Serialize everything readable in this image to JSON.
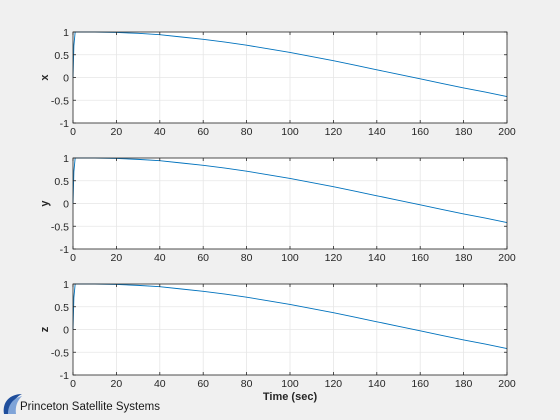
{
  "figure": {
    "background": "#f0f0f0",
    "axes_background": "#ffffff",
    "line_color": "#0072bd",
    "grid": true
  },
  "chart_data": [
    {
      "type": "line",
      "title": "",
      "xlabel": "",
      "ylabel": "x",
      "xlim": [
        0,
        200
      ],
      "ylim": [
        -1,
        1
      ],
      "xticks": [
        0,
        20,
        40,
        60,
        80,
        100,
        120,
        140,
        160,
        180,
        200
      ],
      "yticks": [
        -1,
        -0.5,
        0,
        0.5,
        1
      ],
      "ytick_labels": [
        "-1",
        "-0.5",
        "0",
        "0.5",
        "1"
      ],
      "grid": true,
      "series": [
        {
          "x": [
            0,
            0.4,
            1,
            2,
            5,
            10,
            20,
            30,
            40,
            50,
            60,
            70,
            80,
            90,
            100,
            110,
            120,
            130,
            140,
            150,
            160,
            170,
            180,
            190,
            200
          ],
          "values": [
            0.0,
            0.7,
            1.0,
            1.0,
            1.0,
            1.0,
            0.99,
            0.97,
            0.94,
            0.89,
            0.84,
            0.78,
            0.71,
            0.63,
            0.55,
            0.46,
            0.37,
            0.27,
            0.17,
            0.07,
            -0.03,
            -0.13,
            -0.23,
            -0.32,
            -0.42
          ]
        }
      ]
    },
    {
      "type": "line",
      "title": "",
      "xlabel": "",
      "ylabel": "y",
      "xlim": [
        0,
        200
      ],
      "ylim": [
        -1,
        1
      ],
      "xticks": [
        0,
        20,
        40,
        60,
        80,
        100,
        120,
        140,
        160,
        180,
        200
      ],
      "yticks": [
        -1,
        -0.5,
        0,
        0.5,
        1
      ],
      "ytick_labels": [
        "-1",
        "-0.5",
        "0",
        "0.5",
        "1"
      ],
      "grid": true,
      "series": [
        {
          "x": [
            0,
            0.4,
            1,
            2,
            5,
            10,
            20,
            30,
            40,
            50,
            60,
            70,
            80,
            90,
            100,
            110,
            120,
            130,
            140,
            150,
            160,
            170,
            180,
            190,
            200
          ],
          "values": [
            0.0,
            0.7,
            1.0,
            1.0,
            1.0,
            1.0,
            0.99,
            0.97,
            0.94,
            0.89,
            0.84,
            0.78,
            0.71,
            0.63,
            0.55,
            0.46,
            0.37,
            0.27,
            0.17,
            0.07,
            -0.03,
            -0.13,
            -0.23,
            -0.32,
            -0.42
          ]
        }
      ]
    },
    {
      "type": "line",
      "title": "",
      "xlabel": "Time (sec)",
      "ylabel": "z",
      "xlim": [
        0,
        200
      ],
      "ylim": [
        -1,
        1
      ],
      "xticks": [
        0,
        20,
        40,
        60,
        80,
        100,
        120,
        140,
        160,
        180,
        200
      ],
      "yticks": [
        -1,
        -0.5,
        0,
        0.5,
        1
      ],
      "ytick_labels": [
        "-1",
        "-0.5",
        "0",
        "0.5",
        "1"
      ],
      "grid": true,
      "series": [
        {
          "x": [
            0,
            0.4,
            1,
            2,
            5,
            10,
            20,
            30,
            40,
            50,
            60,
            70,
            80,
            90,
            100,
            110,
            120,
            130,
            140,
            150,
            160,
            170,
            180,
            190,
            200
          ],
          "values": [
            0.0,
            0.7,
            1.0,
            1.0,
            1.0,
            1.0,
            0.99,
            0.97,
            0.94,
            0.89,
            0.84,
            0.78,
            0.71,
            0.63,
            0.55,
            0.46,
            0.37,
            0.27,
            0.17,
            0.07,
            -0.03,
            -0.13,
            -0.23,
            -0.32,
            -0.42
          ]
        }
      ]
    }
  ],
  "logo": {
    "text": "Princeton Satellite Systems",
    "icon": "orbit-swoosh-icon",
    "color": "#1f4e9c"
  }
}
